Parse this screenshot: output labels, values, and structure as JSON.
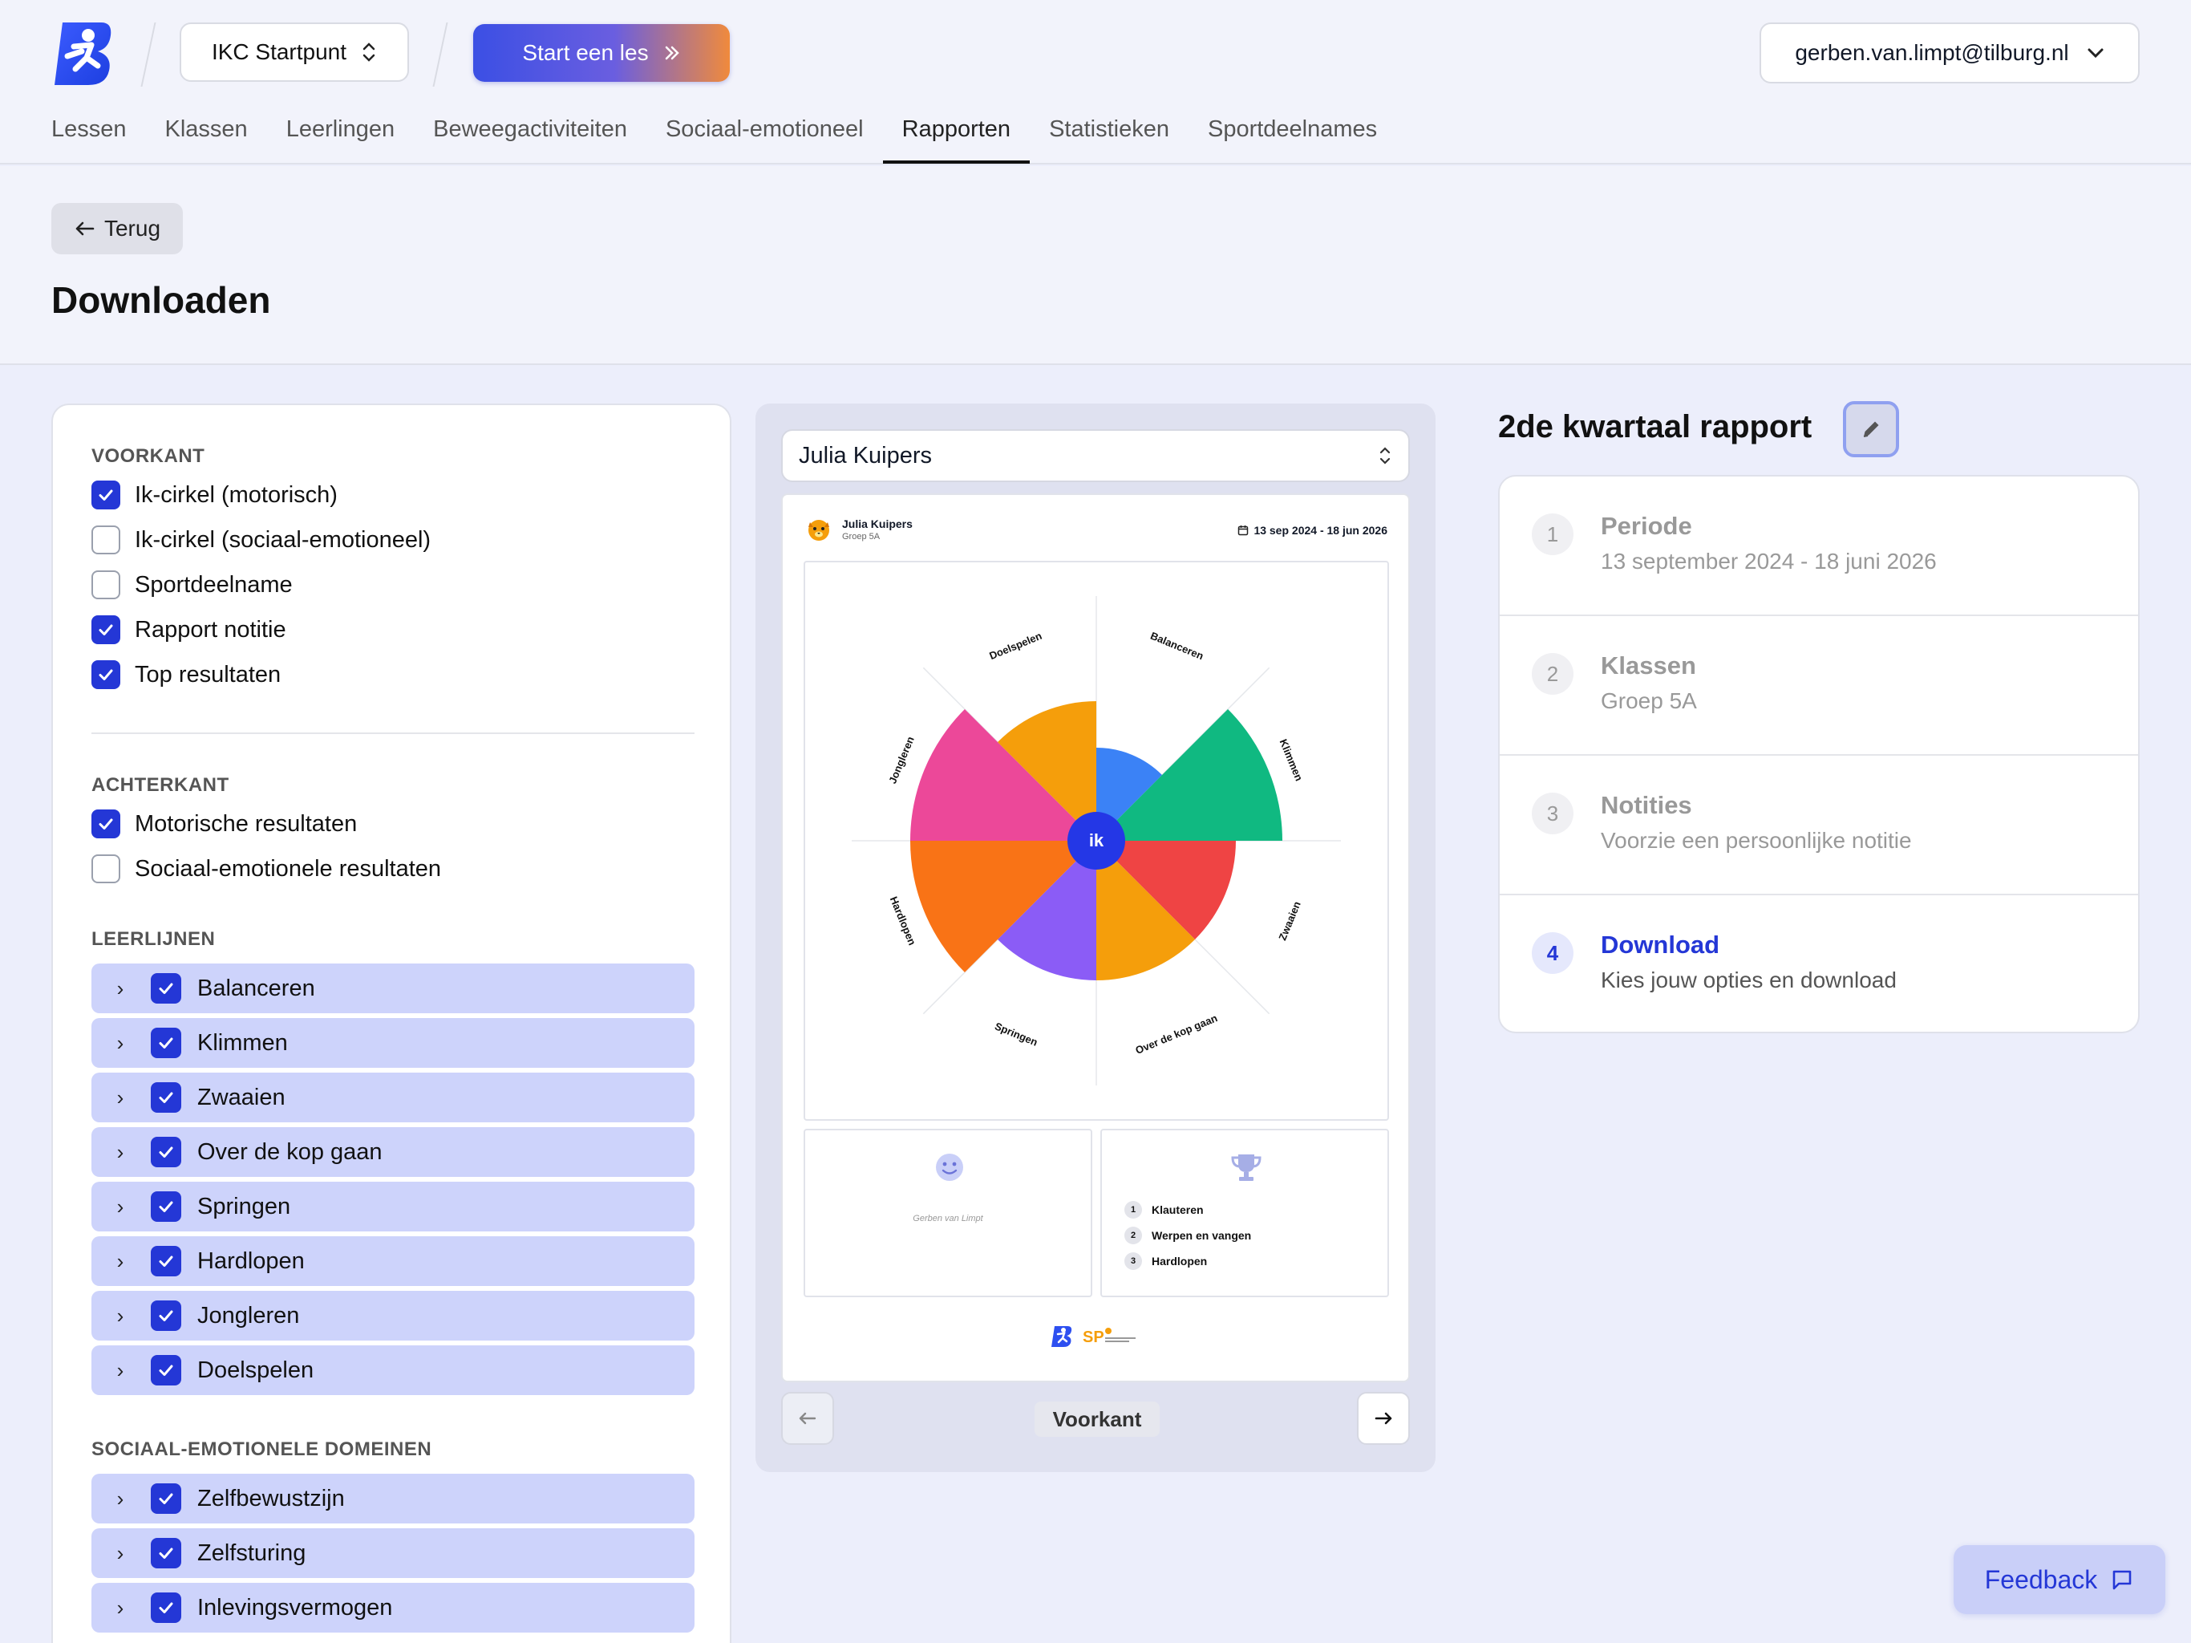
{
  "header": {
    "school": "IKC Startpunt",
    "start_label": "Start een les",
    "user_email": "gerben.van.limpt@tilburg.nl",
    "nav": [
      "Lessen",
      "Klassen",
      "Leerlingen",
      "Beweegactiviteiten",
      "Sociaal-emotioneel",
      "Rapporten",
      "Statistieken",
      "Sportdeelnames"
    ],
    "active_nav": "Rapporten"
  },
  "page": {
    "back_label": "Terug",
    "title": "Downloaden"
  },
  "options": {
    "front_title": "VOORKANT",
    "front": [
      {
        "label": "Ik-cirkel (motorisch)",
        "checked": true
      },
      {
        "label": "Ik-cirkel (sociaal-emotioneel)",
        "checked": false
      },
      {
        "label": "Sportdeelname",
        "checked": false
      },
      {
        "label": "Rapport notitie",
        "checked": true
      },
      {
        "label": "Top resultaten",
        "checked": true
      }
    ],
    "back_title": "ACHTERKANT",
    "back": [
      {
        "label": "Motorische resultaten",
        "checked": true
      },
      {
        "label": "Sociaal-emotionele resultaten",
        "checked": false
      }
    ],
    "leerlijnen_title": "LEERLIJNEN",
    "leerlijnen": [
      "Balanceren",
      "Klimmen",
      "Zwaaien",
      "Over de kop gaan",
      "Springen",
      "Hardlopen",
      "Jongleren",
      "Doelspelen"
    ],
    "domeinen_title": "SOCIAAL-EMOTIONELE DOMEINEN",
    "domeinen": [
      "Zelfbewustzijn",
      "Zelfsturing",
      "Inlevingsvermogen"
    ]
  },
  "preview": {
    "student_select": "Julia Kuipers",
    "student_name": "Julia Kuipers",
    "group": "Groep 5A",
    "date_range": "13 sep 2024 - 18 jun 2026",
    "center_label": "ik",
    "teacher_note": "Gerben van Limpt",
    "top_results": [
      {
        "num": "1",
        "label": "Klauteren"
      },
      {
        "num": "2",
        "label": "Werpen en vangen"
      },
      {
        "num": "3",
        "label": "Hardlopen"
      }
    ],
    "page_label": "Voorkant"
  },
  "chart_data": {
    "type": "pie",
    "center_label": "ik",
    "categories": [
      "Balanceren",
      "Klimmen",
      "Zwaaien",
      "Over de kop gaan",
      "Springen",
      "Hardlopen",
      "Jongleren",
      "Doelspelen"
    ],
    "values": [
      2,
      4,
      3,
      3,
      3,
      4,
      4,
      3
    ],
    "max": 4,
    "colors": [
      "#3b82f6",
      "#10b981",
      "#ef4444",
      "#f59e0b",
      "#8b5cf6",
      "#f97316",
      "#ec4899",
      "#f59e0b"
    ]
  },
  "report": {
    "title": "2de kwartaal rapport",
    "steps": [
      {
        "num": "1",
        "title": "Periode",
        "desc": "13 september 2024 - 18 juni 2026",
        "current": false
      },
      {
        "num": "2",
        "title": "Klassen",
        "desc": "Groep 5A",
        "current": false
      },
      {
        "num": "3",
        "title": "Notities",
        "desc": "Voorzie een persoonlijke notitie",
        "current": false
      },
      {
        "num": "4",
        "title": "Download",
        "desc": "Kies jouw opties en download",
        "current": true
      }
    ]
  },
  "feedback_label": "Feedback"
}
